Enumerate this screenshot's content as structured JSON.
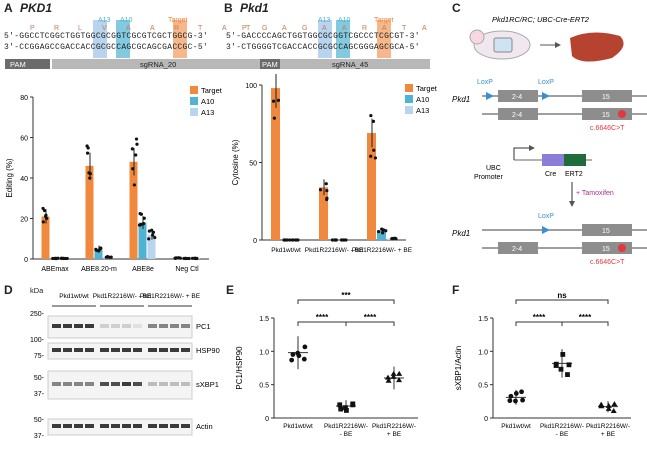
{
  "panels": {
    "A": {
      "letter": "A",
      "gene": "PKD1",
      "aa": [
        "P",
        "R",
        "L",
        "V",
        "A",
        "A",
        "R",
        "T",
        "A",
        "T"
      ],
      "seq_top": "5'-GGCCTCGGCTGGTGGCGCGGTCGCGTCGCTGGCG-3'",
      "seq_bot": "3'-CCGGAGCCGACCACCGCGCCAGCGCAGCGACCGC-5'",
      "pam": "PAM",
      "sg": "sgRNA_20",
      "tags": [
        "A13",
        "A10",
        "Target"
      ]
    },
    "B": {
      "letter": "B",
      "gene": "Pkd1",
      "aa": [
        "P",
        "G",
        "A",
        "G",
        "A",
        "A",
        "R",
        "A",
        "T",
        "A"
      ],
      "seq_top": "5'-GACCCCAGCTGGTGGCGCGGTCGCCCTCGCGT-3'",
      "seq_bot": "3'-CTGGGGTCGACCACCGCGCCAGCGGGAGCGCA-5'",
      "pam": "PAM",
      "sg": "sgRNA_45",
      "tags": [
        "A13",
        "A10",
        "Target"
      ]
    },
    "C": {
      "letter": "C",
      "title": "Pkd1RC/RC; UBC-Cre-ERT2",
      "pkd1": "Pkd1",
      "loxp": "LoxP",
      "exon24": "2-4",
      "exon15": "15",
      "mut": "c.6646C>T",
      "ubc": "UBC",
      "promoter": "Promoter",
      "cre": "Cre",
      "ert2": "ERT2",
      "tamoxifen": "+ Tamoxifen"
    },
    "D": {
      "letter": "D",
      "kda": "kDa",
      "groups": [
        "Pkd1wt/wt",
        "Pkd1R2216W/- - BE",
        "Pkd1R2216W/- + BE"
      ],
      "markers": [
        "250-",
        "100-",
        "75-",
        "50-",
        "37-",
        "50-",
        "37-"
      ],
      "bands": [
        "PC1",
        "HSP90",
        "sXBP1",
        "Actin"
      ]
    },
    "E": {
      "letter": "E"
    },
    "F": {
      "letter": "F"
    }
  },
  "legend_labels": [
    "Target",
    "A10",
    "A13"
  ],
  "colors": {
    "target": "#f0883e",
    "a10": "#4fb3d4",
    "a13": "#b8d4ee",
    "pam": "#6b6b6b",
    "sg": "#b8b8b8"
  },
  "chart_data": [
    {
      "type": "bar",
      "panel": "A",
      "ylabel": "Editing (%)",
      "ylim": [
        0,
        80
      ],
      "yticks": [
        0,
        20,
        40,
        60,
        80
      ],
      "categories": [
        "ABEmax",
        "ABE8.20-m",
        "ABE8e",
        "Neg Ctl"
      ],
      "series": [
        {
          "name": "Target",
          "values": [
            21,
            46,
            48,
            0.5
          ]
        },
        {
          "name": "A10",
          "values": [
            0.3,
            5,
            18,
            0.3
          ]
        },
        {
          "name": "A13",
          "values": [
            0.3,
            1,
            12,
            0.3
          ]
        }
      ]
    },
    {
      "type": "bar",
      "panel": "B",
      "ylabel": "Cytosine (%)",
      "ylim": [
        0,
        100
      ],
      "yticks": [
        0,
        50,
        100
      ],
      "categories": [
        "Pkd1wt/wt",
        "Pkd1R2216W/- - BE",
        "Pkd1R2216W/- + BE"
      ],
      "series": [
        {
          "name": "Target",
          "values": [
            98,
            34,
            69
          ]
        },
        {
          "name": "A10",
          "values": [
            0,
            0,
            6
          ]
        },
        {
          "name": "A13",
          "values": [
            0,
            0,
            1
          ]
        }
      ]
    },
    {
      "type": "scatter",
      "panel": "E",
      "ylabel": "PC1/HSP90",
      "ylim": [
        0,
        1.5
      ],
      "yticks": [
        0,
        0.5,
        1.0,
        1.5
      ],
      "categories": [
        "Pkd1wt/wt",
        "Pkd1R2216W/- - BE",
        "Pkd1R2216W/- + BE"
      ],
      "means": [
        0.98,
        0.18,
        0.6
      ],
      "significance": [
        {
          "label": "***",
          "from": 0,
          "to": 2
        },
        {
          "label": "****",
          "from": 0,
          "to": 1
        },
        {
          "label": "****",
          "from": 1,
          "to": 2
        }
      ]
    },
    {
      "type": "scatter",
      "panel": "F",
      "ylabel": "sXBP1/Actin",
      "ylim": [
        0,
        1.5
      ],
      "yticks": [
        0,
        0.5,
        1.0,
        1.5
      ],
      "categories": [
        "Pkd1wt/wt",
        "Pkd1R2216W/- - BE",
        "Pkd1R2216W/- + BE"
      ],
      "means": [
        0.31,
        0.82,
        0.17
      ],
      "significance": [
        {
          "label": "ns",
          "from": 0,
          "to": 2
        },
        {
          "label": "****",
          "from": 0,
          "to": 1
        },
        {
          "label": "****",
          "from": 1,
          "to": 2
        }
      ]
    }
  ]
}
